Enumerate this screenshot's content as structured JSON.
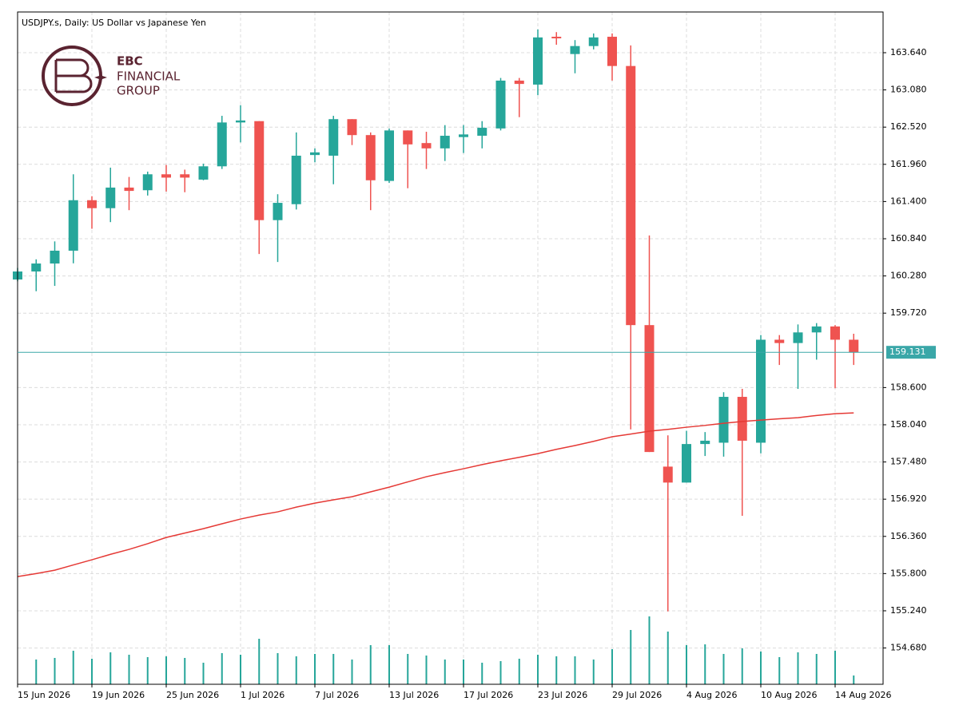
{
  "chart_data": {
    "type": "candlestick",
    "title": "USDJPY.s, Daily:  US Dollar vs Japanese Yen",
    "logo": {
      "mark": "EBC",
      "line1": "FINANCIAL",
      "line2": "GROUP"
    },
    "categories": [
      "15 Jun 2026",
      null,
      null,
      null,
      "19 Jun 2026",
      null,
      null,
      null,
      "25 Jun 2026",
      null,
      null,
      null,
      "1 Jul 2026",
      null,
      null,
      null,
      "7 Jul 2026",
      null,
      null,
      null,
      "13 Jul 2026",
      null,
      null,
      null,
      "17 Jul 2026",
      null,
      null,
      null,
      "23 Jul 2026",
      null,
      null,
      null,
      "29 Jul 2026",
      null,
      null,
      null,
      "4 Aug 2026",
      null,
      null,
      null,
      "10 Aug 2026",
      null,
      null,
      null,
      "14 Aug 2026",
      null
    ],
    "open": [
      160.226,
      160.347,
      160.467,
      160.66,
      161.42,
      161.3,
      161.61,
      161.57,
      161.81,
      161.81,
      161.73,
      161.93,
      162.59,
      162.61,
      161.12,
      161.36,
      162.1,
      162.09,
      162.64,
      162.4,
      161.71,
      162.47,
      162.28,
      162.2,
      162.37,
      162.39,
      162.5,
      163.22,
      163.16,
      163.88,
      163.62,
      163.74,
      163.88,
      163.44,
      159.54,
      157.41,
      157.17,
      157.75,
      157.77,
      158.46,
      157.77,
      159.32,
      159.27,
      159.43,
      159.52,
      159.32
    ],
    "high": [
      160.4,
      160.53,
      160.8,
      161.81,
      161.48,
      161.91,
      161.77,
      161.85,
      161.95,
      161.88,
      161.97,
      162.69,
      162.85,
      162.61,
      161.51,
      162.44,
      162.2,
      162.69,
      162.64,
      162.44,
      162.5,
      162.47,
      162.45,
      162.55,
      162.55,
      162.61,
      163.26,
      163.26,
      163.99,
      163.95,
      163.83,
      163.93,
      163.93,
      163.75,
      160.89,
      157.88,
      157.95,
      157.93,
      158.53,
      158.58,
      159.39,
      159.39,
      159.55,
      159.57,
      159.54,
      159.41
    ],
    "low": [
      160.2,
      160.05,
      160.13,
      160.47,
      160.99,
      161.09,
      161.27,
      161.49,
      161.55,
      161.54,
      161.72,
      161.89,
      162.29,
      160.61,
      160.49,
      161.28,
      161.99,
      161.66,
      162.25,
      161.27,
      161.68,
      161.6,
      161.89,
      162.01,
      162.13,
      162.2,
      162.47,
      162.67,
      163.0,
      163.76,
      163.33,
      163.69,
      163.22,
      157.97,
      157.63,
      155.23,
      157.17,
      157.57,
      157.56,
      156.67,
      157.61,
      158.94,
      158.58,
      159.02,
      158.59,
      158.94
    ],
    "close": [
      160.347,
      160.467,
      160.66,
      161.42,
      161.3,
      161.61,
      161.56,
      161.81,
      161.76,
      161.76,
      161.93,
      162.59,
      162.62,
      161.12,
      161.38,
      162.09,
      162.14,
      162.64,
      162.4,
      161.72,
      162.47,
      162.26,
      162.2,
      162.39,
      162.41,
      162.51,
      163.22,
      163.17,
      163.87,
      163.86,
      163.74,
      163.87,
      163.44,
      159.54,
      157.63,
      157.17,
      157.75,
      157.8,
      158.46,
      157.8,
      159.32,
      159.27,
      159.43,
      159.52,
      159.32,
      159.131
    ],
    "up_color": "#26a69a",
    "down_color": "#ef5350",
    "ma": {
      "color": "#e53935",
      "values": [
        155.755,
        155.8,
        155.851,
        155.93,
        156.008,
        156.09,
        156.164,
        156.25,
        156.344,
        156.41,
        156.476,
        156.55,
        156.621,
        156.68,
        156.729,
        156.8,
        156.861,
        156.91,
        156.957,
        157.03,
        157.101,
        157.18,
        157.258,
        157.32,
        157.378,
        157.44,
        157.498,
        157.55,
        157.606,
        157.67,
        157.727,
        157.79,
        157.859,
        157.9,
        157.943,
        157.97,
        158.003,
        158.03,
        158.063,
        158.09,
        158.111,
        158.13,
        158.147,
        158.18,
        158.207,
        158.219
      ]
    },
    "volume": {
      "color": "#26a69a",
      "values": [
        null,
        31,
        33,
        42,
        32,
        40,
        37,
        34,
        35,
        33,
        27,
        39,
        37,
        57,
        39,
        35,
        38,
        38,
        31,
        49,
        49,
        38,
        36,
        31,
        31,
        27,
        29,
        32,
        37,
        35,
        35,
        31,
        44,
        68,
        85,
        66,
        49,
        50,
        38,
        45,
        41,
        34,
        40,
        38,
        42,
        11
      ]
    },
    "current_price": 159.131,
    "current_price_color": "#3aa7a8",
    "ylim": [
      154.134,
      164.253
    ],
    "yticks": [
      {
        "value": 154.68,
        "label": "154.680"
      },
      {
        "value": 155.24,
        "label": "155.240"
      },
      {
        "value": 155.8,
        "label": "155.800"
      },
      {
        "value": 156.36,
        "label": "156.360"
      },
      {
        "value": 156.92,
        "label": "156.920"
      },
      {
        "value": 157.48,
        "label": "157.480"
      },
      {
        "value": 158.04,
        "label": "158.040"
      },
      {
        "value": 158.6,
        "label": "158.600"
      },
      {
        "value": 159.72,
        "label": "159.720"
      },
      {
        "value": 160.28,
        "label": "160.280"
      },
      {
        "value": 160.84,
        "label": "160.840"
      },
      {
        "value": 161.4,
        "label": "161.400"
      },
      {
        "value": 161.96,
        "label": "161.960"
      },
      {
        "value": 162.52,
        "label": "162.520"
      },
      {
        "value": 163.08,
        "label": "163.080"
      },
      {
        "value": 163.64,
        "label": "163.640"
      }
    ],
    "grid": true
  }
}
